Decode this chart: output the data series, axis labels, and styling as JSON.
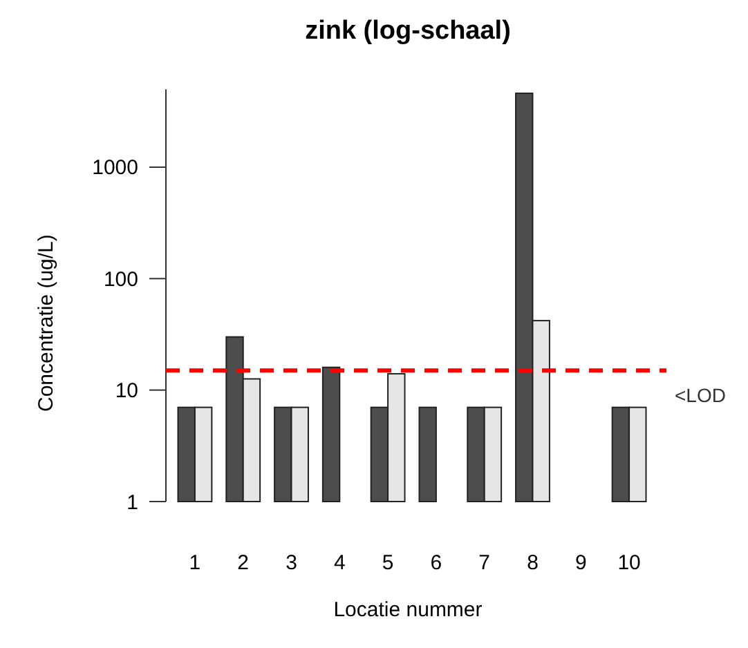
{
  "chart_data": {
    "type": "bar",
    "title": "zink (log-schaal)",
    "xlabel": "Locatie nummer",
    "ylabel": "Concentratie (ug/L)",
    "categories": [
      "1",
      "2",
      "3",
      "4",
      "5",
      "6",
      "7",
      "8",
      "9",
      "10"
    ],
    "series": [
      {
        "color": "#4d4d4d",
        "values": [
          7,
          30,
          7,
          16,
          7,
          7,
          7,
          4600,
          null,
          7
        ]
      },
      {
        "color": "#e6e6e6",
        "values": [
          7,
          12.6,
          7,
          null,
          14,
          null,
          7,
          42,
          null,
          7
        ]
      }
    ],
    "log": true,
    "ylim": [
      1,
      5000
    ],
    "yticks": [
      1,
      10,
      100,
      1000
    ],
    "ref_lines": [
      {
        "axis": "y",
        "value": 15,
        "label": "<LOD",
        "color": "#ff0000",
        "line_style": "dashed"
      }
    ],
    "grid": false
  }
}
